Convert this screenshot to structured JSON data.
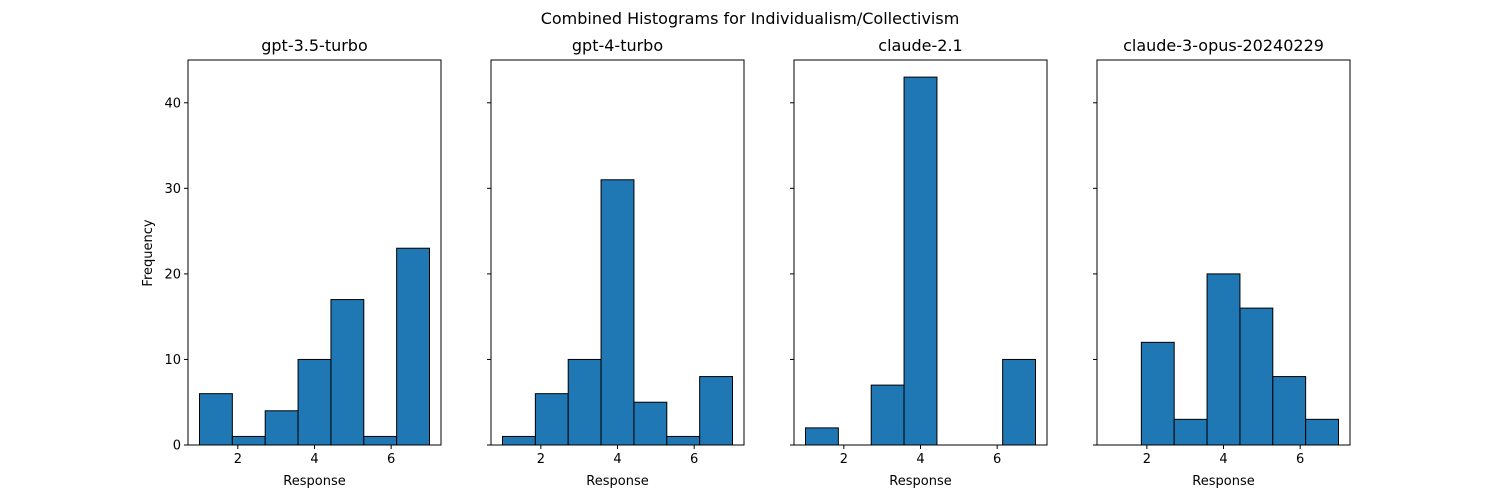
{
  "figure": {
    "suptitle": "Combined Histograms for Individualism/Collectivism",
    "ylabel": "Frequency",
    "bar_color": "#1f77b4",
    "bar_edge_color": "#000000"
  },
  "chart_data": [
    {
      "type": "bar",
      "title": "gpt-3.5-turbo",
      "xlabel": "Response",
      "ylabel": "Frequency",
      "bin_edges": [
        1.0,
        1.857,
        2.714,
        3.571,
        4.429,
        5.286,
        6.143,
        7.0
      ],
      "values": [
        6,
        1,
        4,
        10,
        17,
        1,
        23
      ],
      "xlim": [
        0.7,
        7.3
      ],
      "ylim": [
        0,
        45
      ],
      "xticks": [
        2,
        4,
        6
      ],
      "yticks": [
        0,
        10,
        20,
        30,
        40
      ],
      "show_yticklabels": true
    },
    {
      "type": "bar",
      "title": "gpt-4-turbo",
      "xlabel": "Response",
      "ylabel": "",
      "bin_edges": [
        1.0,
        1.857,
        2.714,
        3.571,
        4.429,
        5.286,
        6.143,
        7.0
      ],
      "values": [
        1,
        6,
        10,
        31,
        5,
        1,
        8
      ],
      "xlim": [
        0.7,
        7.3
      ],
      "ylim": [
        0,
        45
      ],
      "xticks": [
        2,
        4,
        6
      ],
      "yticks": [
        0,
        10,
        20,
        30,
        40
      ],
      "show_yticklabels": false
    },
    {
      "type": "bar",
      "title": "claude-2.1",
      "xlabel": "Response",
      "ylabel": "",
      "bin_edges": [
        1.0,
        1.857,
        2.714,
        3.571,
        4.429,
        5.286,
        6.143,
        7.0
      ],
      "values": [
        2,
        0,
        7,
        43,
        0,
        0,
        10
      ],
      "xlim": [
        0.7,
        7.3
      ],
      "ylim": [
        0,
        45
      ],
      "xticks": [
        2,
        4,
        6
      ],
      "yticks": [
        0,
        10,
        20,
        30,
        40
      ],
      "show_yticklabels": false
    },
    {
      "type": "bar",
      "title": "claude-3-opus-20240229",
      "xlabel": "Response",
      "ylabel": "",
      "bin_edges": [
        1.0,
        1.857,
        2.714,
        3.571,
        4.429,
        5.286,
        6.143,
        7.0
      ],
      "values": [
        0,
        12,
        3,
        20,
        16,
        8,
        3
      ],
      "xlim": [
        0.7,
        7.3
      ],
      "ylim": [
        0,
        45
      ],
      "xticks": [
        2,
        4,
        6
      ],
      "yticks": [
        0,
        10,
        20,
        30,
        40
      ],
      "show_yticklabels": false
    }
  ]
}
